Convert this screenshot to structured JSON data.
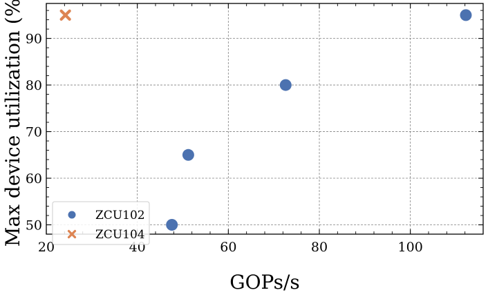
{
  "chart_data": {
    "type": "scatter",
    "xlabel": "GOPs/s",
    "ylabel": "Max device utilization (%)",
    "xlim": [
      20,
      116
    ],
    "ylim": [
      48,
      97.5
    ],
    "xticks": [
      20,
      40,
      60,
      80,
      100
    ],
    "yticks": [
      50,
      60,
      70,
      80,
      90
    ],
    "grid": true,
    "legend_position": "lower-left",
    "series": [
      {
        "name": "ZCU102",
        "marker": "circle",
        "color": "#4c72b0",
        "points": [
          {
            "x": 47.6,
            "y": 50
          },
          {
            "x": 51.2,
            "y": 65
          },
          {
            "x": 72.6,
            "y": 80
          },
          {
            "x": 112.2,
            "y": 95
          }
        ]
      },
      {
        "name": "ZCU104",
        "marker": "x",
        "color": "#dd8452",
        "points": [
          {
            "x": 24.2,
            "y": 95
          }
        ]
      }
    ]
  }
}
